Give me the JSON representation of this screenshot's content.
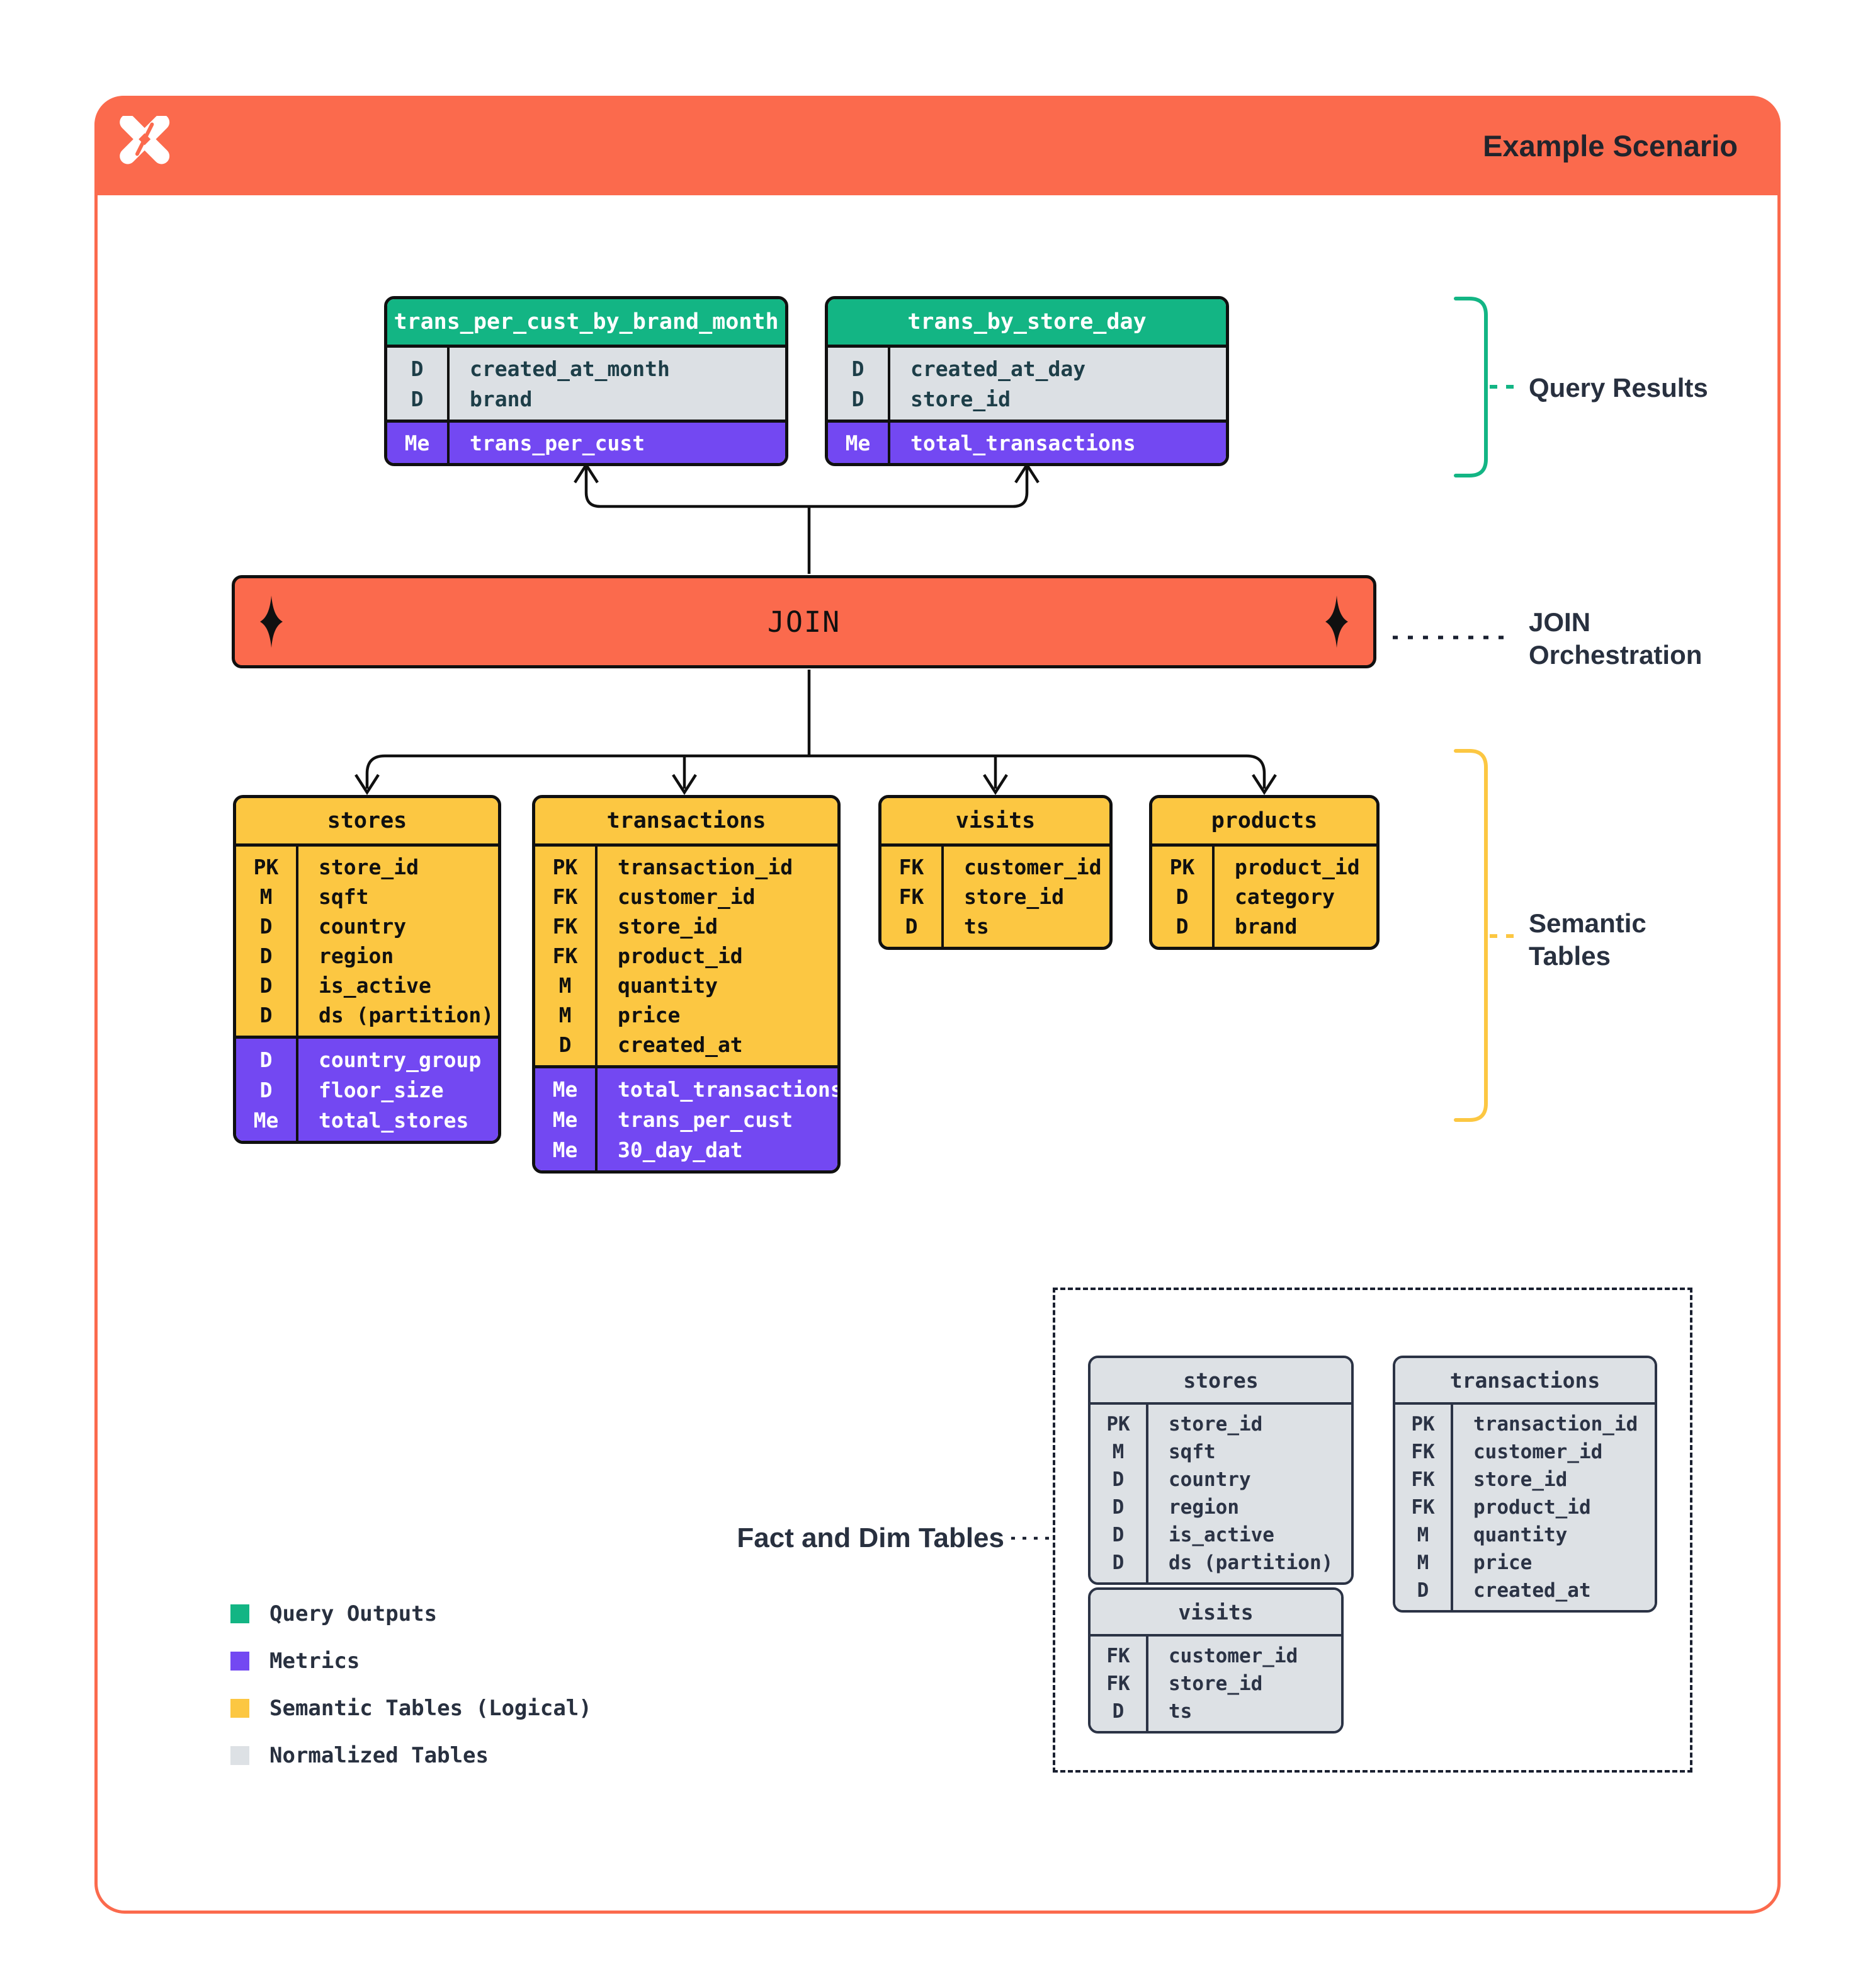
{
  "header": {
    "title": "Example Scenario",
    "logo": "dagster-logo"
  },
  "colors": {
    "accent_orange": "#FB6A4D",
    "query_output_green": "#13B584",
    "metric_purple": "#7348F2",
    "semantic_yellow": "#FCC742",
    "normalized_gray": "#DDE1E5",
    "navy_text": "#28303F"
  },
  "query_results": {
    "annotation": "Query Results",
    "tables": [
      {
        "name": "trans_per_cust_by_brand_month",
        "sections": [
          {
            "kind": "dims",
            "rows": [
              [
                "D",
                "created_at_month"
              ],
              [
                "D",
                "brand"
              ]
            ]
          },
          {
            "kind": "metrics",
            "rows": [
              [
                "Me",
                "trans_per_cust"
              ]
            ]
          }
        ]
      },
      {
        "name": "trans_by_store_day",
        "sections": [
          {
            "kind": "dims",
            "rows": [
              [
                "D",
                "created_at_day"
              ],
              [
                "D",
                "store_id"
              ]
            ]
          },
          {
            "kind": "metrics",
            "rows": [
              [
                "Me",
                "total_transactions"
              ]
            ]
          }
        ]
      }
    ]
  },
  "join": {
    "label": "JOIN",
    "annotation": "JOIN\nOrchestration"
  },
  "semantic_tables": {
    "annotation": "Semantic\nTables",
    "tables": [
      {
        "name": "stores",
        "sections": [
          {
            "kind": "fields",
            "rows": [
              [
                "PK",
                "store_id"
              ],
              [
                "M",
                "sqft"
              ],
              [
                "D",
                "country"
              ],
              [
                "D",
                "region"
              ],
              [
                "D",
                "is_active"
              ],
              [
                "D",
                "ds (partition)"
              ]
            ]
          },
          {
            "kind": "metrics",
            "rows": [
              [
                "D",
                "country_group"
              ],
              [
                "D",
                "floor_size"
              ],
              [
                "Me",
                "total_stores"
              ]
            ]
          }
        ]
      },
      {
        "name": "transactions",
        "sections": [
          {
            "kind": "fields",
            "rows": [
              [
                "PK",
                "transaction_id"
              ],
              [
                "FK",
                "customer_id"
              ],
              [
                "FK",
                "store_id"
              ],
              [
                "FK",
                "product_id"
              ],
              [
                "M",
                "quantity"
              ],
              [
                "M",
                "price"
              ],
              [
                "D",
                "created_at"
              ]
            ]
          },
          {
            "kind": "metrics",
            "rows": [
              [
                "Me",
                "total_transactions"
              ],
              [
                "Me",
                "trans_per_cust"
              ],
              [
                "Me",
                "30_day_dat"
              ]
            ]
          }
        ]
      },
      {
        "name": "visits",
        "sections": [
          {
            "kind": "fields",
            "rows": [
              [
                "FK",
                "customer_id"
              ],
              [
                "FK",
                "store_id"
              ],
              [
                "D",
                "ts"
              ]
            ]
          }
        ]
      },
      {
        "name": "products",
        "sections": [
          {
            "kind": "fields",
            "rows": [
              [
                "PK",
                "product_id"
              ],
              [
                "D",
                "category"
              ],
              [
                "D",
                "brand"
              ]
            ]
          }
        ]
      }
    ]
  },
  "fact_dim": {
    "annotation": "Fact and Dim Tables",
    "tables": [
      {
        "name": "stores",
        "sections": [
          {
            "kind": "plain",
            "rows": [
              [
                "PK",
                "store_id"
              ],
              [
                "M",
                "sqft"
              ],
              [
                "D",
                "country"
              ],
              [
                "D",
                "region"
              ],
              [
                "D",
                "is_active"
              ],
              [
                "D",
                "ds (partition)"
              ]
            ]
          }
        ]
      },
      {
        "name": "transactions",
        "sections": [
          {
            "kind": "plain",
            "rows": [
              [
                "PK",
                "transaction_id"
              ],
              [
                "FK",
                "customer_id"
              ],
              [
                "FK",
                "store_id"
              ],
              [
                "FK",
                "product_id"
              ],
              [
                "M",
                "quantity"
              ],
              [
                "M",
                "price"
              ],
              [
                "D",
                "created_at"
              ]
            ]
          }
        ]
      },
      {
        "name": "visits",
        "sections": [
          {
            "kind": "plain",
            "rows": [
              [
                "FK",
                "customer_id"
              ],
              [
                "FK",
                "store_id"
              ],
              [
                "D",
                "ts"
              ]
            ]
          }
        ]
      }
    ]
  },
  "legend": {
    "items": [
      {
        "label": "Query Outputs",
        "color": "#13B584"
      },
      {
        "label": "Metrics",
        "color": "#7348F2"
      },
      {
        "label": "Semantic Tables (Logical)",
        "color": "#FCC742"
      },
      {
        "label": "Normalized Tables",
        "color": "#DDE1E5"
      }
    ]
  }
}
